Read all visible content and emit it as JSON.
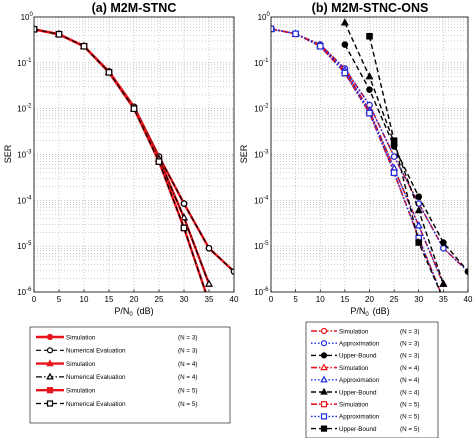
{
  "chart_data": [
    {
      "type": "line",
      "title": "(a) M2M-STNC",
      "xlabel": "P/N",
      "xlabel_sub": "0",
      "xlabel_unit": "(dB)",
      "ylabel": "SER",
      "xlim": [
        0,
        40
      ],
      "ylim": [
        1e-06,
        1
      ],
      "yscale": "log",
      "grid": true,
      "xticks": [
        "0",
        "5",
        "10",
        "15",
        "20",
        "25",
        "30",
        "35",
        "40"
      ],
      "yticks": [
        {
          "base": "10",
          "exp": "0"
        },
        {
          "base": "10",
          "exp": "-1"
        },
        {
          "base": "10",
          "exp": "-2"
        },
        {
          "base": "10",
          "exp": "-3"
        },
        {
          "base": "10",
          "exp": "-4"
        },
        {
          "base": "10",
          "exp": "-5"
        },
        {
          "base": "10",
          "exp": "-6"
        }
      ],
      "series": [
        {
          "name": "Simulation",
          "n": "(N = 3)",
          "color": "#e8141c",
          "dash": "solid",
          "marker": "circle",
          "fill": true,
          "width": 2.4,
          "x": [
            0,
            5,
            10,
            15,
            20,
            25,
            30,
            35,
            40
          ],
          "y": [
            0.54,
            0.42,
            0.23,
            0.065,
            0.011,
            0.0009,
            8.5e-05,
            9e-06,
            2.8e-06
          ]
        },
        {
          "name": "Numerical Evaluation",
          "n": "(N = 3)",
          "color": "#000000",
          "dash": "dash",
          "marker": "circle",
          "fill": false,
          "width": 1.2,
          "x": [
            0,
            5,
            10,
            15,
            20,
            25,
            30,
            35,
            40
          ],
          "y": [
            0.54,
            0.42,
            0.23,
            0.065,
            0.011,
            0.0009,
            8.5e-05,
            9e-06,
            2.8e-06
          ]
        },
        {
          "name": "Simulation",
          "n": "(N = 4)",
          "color": "#e8141c",
          "dash": "solid",
          "marker": "triangle",
          "fill": true,
          "width": 2.4,
          "x": [
            0,
            5,
            10,
            15,
            20,
            25,
            30,
            35
          ],
          "y": [
            0.54,
            0.42,
            0.23,
            0.063,
            0.01,
            0.0008,
            4.2e-05,
            1.5e-06
          ]
        },
        {
          "name": "Numerical Evaluation",
          "n": "(N = 4)",
          "color": "#000000",
          "dash": "dashdot",
          "marker": "triangle",
          "fill": false,
          "width": 1.2,
          "x": [
            0,
            5,
            10,
            15,
            20,
            25,
            30,
            35
          ],
          "y": [
            0.54,
            0.42,
            0.23,
            0.063,
            0.01,
            0.0008,
            4.2e-05,
            1.5e-06
          ]
        },
        {
          "name": "Simulation",
          "n": "(N = 5)",
          "color": "#e8141c",
          "dash": "solid",
          "marker": "square",
          "fill": true,
          "width": 2.4,
          "x": [
            0,
            5,
            10,
            15,
            20,
            25,
            30,
            35
          ],
          "y": [
            0.54,
            0.42,
            0.23,
            0.062,
            0.01,
            0.0007,
            2.5e-05,
            6e-07
          ]
        },
        {
          "name": "Numerical Evaluation",
          "n": "(N = 5)",
          "color": "#000000",
          "dash": "dash",
          "marker": "square",
          "fill": false,
          "width": 1.2,
          "x": [
            0,
            5,
            10,
            15,
            20,
            25,
            30,
            35
          ],
          "y": [
            0.54,
            0.42,
            0.23,
            0.062,
            0.01,
            0.0007,
            2.5e-05,
            6e-07
          ]
        }
      ]
    },
    {
      "type": "line",
      "title": "(b) M2M-STNC-ONS",
      "xlabel": "P/N",
      "xlabel_sub": "0",
      "xlabel_unit": "(dB)",
      "ylabel": "SER",
      "xlim": [
        0,
        40
      ],
      "ylim": [
        1e-06,
        1
      ],
      "yscale": "log",
      "grid": true,
      "xticks": [
        "0",
        "5",
        "10",
        "15",
        "20",
        "25",
        "30",
        "35",
        "40"
      ],
      "yticks": [
        {
          "base": "10",
          "exp": "0"
        },
        {
          "base": "10",
          "exp": "-1"
        },
        {
          "base": "10",
          "exp": "-2"
        },
        {
          "base": "10",
          "exp": "-3"
        },
        {
          "base": "10",
          "exp": "-4"
        },
        {
          "base": "10",
          "exp": "-5"
        },
        {
          "base": "10",
          "exp": "-6"
        }
      ],
      "series": [
        {
          "name": "Simulation",
          "n": "(N = 3)",
          "color": "#e8141c",
          "dash": "dashdot",
          "marker": "circle",
          "fill": false,
          "width": 1.6,
          "x": [
            0,
            5,
            10,
            15,
            20,
            25,
            30,
            35,
            40
          ],
          "y": [
            0.55,
            0.43,
            0.25,
            0.075,
            0.012,
            0.0009,
            8.5e-05,
            9e-06,
            2.8e-06
          ]
        },
        {
          "name": "Approximation",
          "n": "(N = 3)",
          "color": "#1a2ae0",
          "dash": "dot",
          "marker": "circle",
          "fill": false,
          "width": 1.4,
          "x": [
            0,
            5,
            10,
            15,
            20,
            25,
            30,
            35,
            40
          ],
          "y": [
            0.55,
            0.43,
            0.25,
            0.075,
            0.012,
            0.0009,
            8.5e-05,
            9e-06,
            2.8e-06
          ]
        },
        {
          "name": "Upper-Bound",
          "n": "(N = 3)",
          "color": "#000000",
          "dash": "dash",
          "marker": "circle",
          "fill": true,
          "width": 1.4,
          "x": [
            15,
            20,
            25,
            30,
            35,
            40
          ],
          "y": [
            0.25,
            0.026,
            0.0015,
            0.00012,
            1.2e-05,
            2.8e-06
          ]
        },
        {
          "name": "Simulation",
          "n": "(N = 4)",
          "color": "#e8141c",
          "dash": "dashdot",
          "marker": "triangle",
          "fill": false,
          "width": 1.6,
          "x": [
            0,
            5,
            10,
            15,
            20,
            25,
            30,
            35
          ],
          "y": [
            0.55,
            0.43,
            0.24,
            0.068,
            0.009,
            0.0005,
            2.8e-05,
            1.5e-06
          ]
        },
        {
          "name": "Approximation",
          "n": "(N = 4)",
          "color": "#1a2ae0",
          "dash": "dot",
          "marker": "triangle",
          "fill": false,
          "width": 1.4,
          "x": [
            0,
            5,
            10,
            15,
            20,
            25,
            30,
            35
          ],
          "y": [
            0.55,
            0.43,
            0.24,
            0.068,
            0.009,
            0.0005,
            2.8e-05,
            1.5e-06
          ]
        },
        {
          "name": "Upper-Bound",
          "n": "(N = 4)",
          "color": "#000000",
          "dash": "dash",
          "marker": "triangle",
          "fill": true,
          "width": 1.4,
          "x": [
            15,
            20,
            25,
            30,
            35
          ],
          "y": [
            0.75,
            0.05,
            0.0018,
            6e-05,
            1.5e-06
          ]
        },
        {
          "name": "Simulation",
          "n": "(N = 5)",
          "color": "#e8141c",
          "dash": "dashdot",
          "marker": "square",
          "fill": false,
          "width": 1.6,
          "x": [
            0,
            5,
            10,
            15,
            20,
            25,
            30,
            35
          ],
          "y": [
            0.55,
            0.43,
            0.23,
            0.06,
            0.008,
            0.0004,
            1.5e-05,
            7e-07
          ]
        },
        {
          "name": "Approximation",
          "n": "(N = 5)",
          "color": "#1a2ae0",
          "dash": "dot",
          "marker": "square",
          "fill": false,
          "width": 1.4,
          "x": [
            0,
            5,
            10,
            15,
            20,
            25,
            30,
            35
          ],
          "y": [
            0.55,
            0.43,
            0.23,
            0.06,
            0.008,
            0.0004,
            1.5e-05,
            7e-07
          ]
        },
        {
          "name": "Upper-Bound",
          "n": "(N = 5)",
          "color": "#000000",
          "dash": "dash",
          "marker": "square",
          "fill": true,
          "width": 1.4,
          "x": [
            20,
            25,
            30,
            35
          ],
          "y": [
            0.38,
            0.002,
            1.2e-05,
            7e-07
          ]
        }
      ]
    }
  ]
}
